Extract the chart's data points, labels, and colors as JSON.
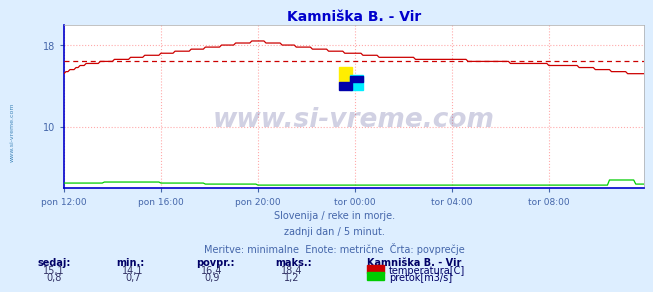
{
  "title": "Kamniška B. - Vir",
  "title_color": "#0000cc",
  "bg_color": "#ddeeff",
  "plot_bg_color": "#ffffff",
  "grid_color": "#ffaaaa",
  "xlim": [
    0,
    287
  ],
  "ylim": [
    4,
    20
  ],
  "yticks": [
    10,
    18
  ],
  "xtick_labels": [
    "pon 12:00",
    "pon 16:00",
    "pon 20:00",
    "tor 00:00",
    "tor 04:00",
    "tor 08:00"
  ],
  "xtick_positions": [
    0,
    48,
    96,
    144,
    192,
    240
  ],
  "avg_line_value": 16.4,
  "avg_line_color": "#cc0000",
  "temp_color": "#cc0000",
  "flow_color": "#00cc00",
  "flow_min": 0.7,
  "flow_max": 1.2,
  "flow_avg": 0.9,
  "flow_now": 0.8,
  "temp_min": 14.1,
  "temp_max": 18.4,
  "temp_avg": 16.4,
  "temp_now": 15.1,
  "watermark": "www.si-vreme.com",
  "watermark_color": "#000066",
  "watermark_alpha": 0.18,
  "footer_lines": [
    "Slovenija / reke in morje.",
    "zadnji dan / 5 minut.",
    "Meritve: minimalne  Enote: metrične  Črta: povprečje"
  ],
  "footer_color": "#4466aa",
  "legend_title": "Kamniška B. - Vir",
  "legend_color": "#000066",
  "label_color": "#000066",
  "tick_color": "#4466aa",
  "sidebar_text": "www.si-vreme.com",
  "sidebar_color": "#4488bb",
  "stats_labels": [
    "sedaj:",
    "min.:",
    "povpr.:",
    "maks.:"
  ],
  "temp_vals": [
    "15,1",
    "14,1",
    "16,4",
    "18,4"
  ],
  "flow_vals": [
    "0,8",
    "0,7",
    "0,9",
    "1,2"
  ]
}
